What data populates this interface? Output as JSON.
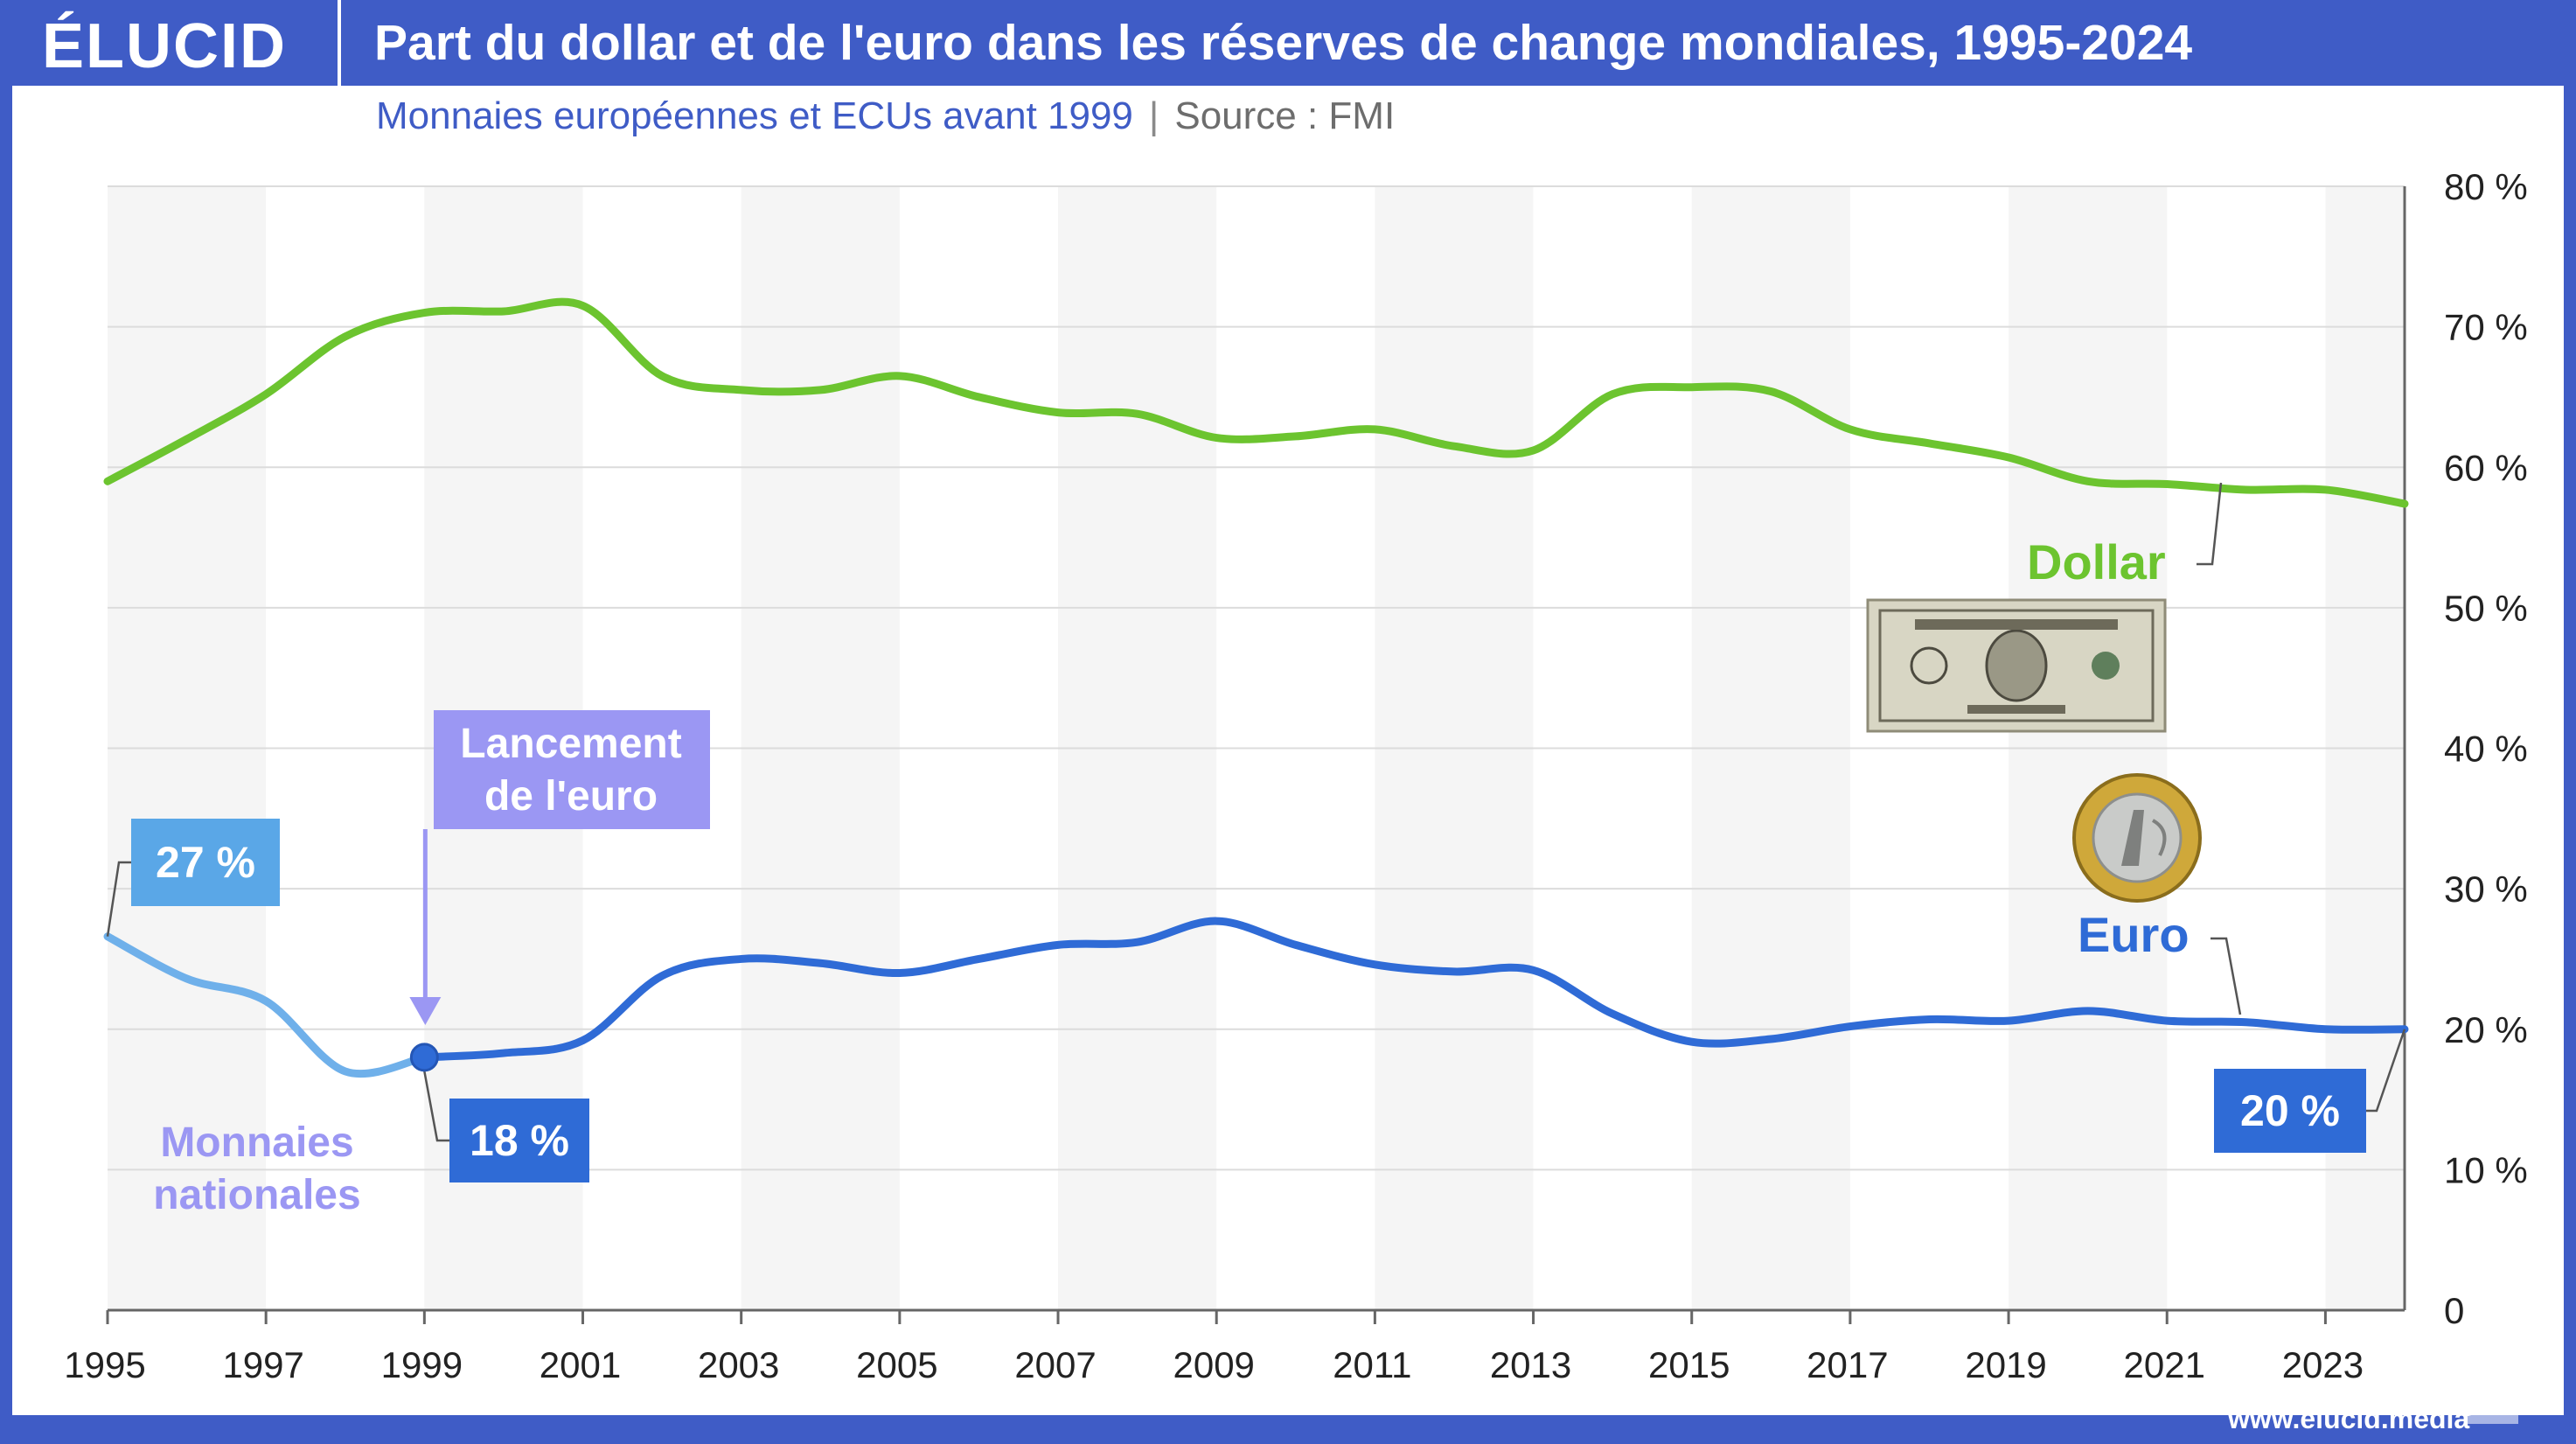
{
  "header": {
    "logo": "ÉLUCID",
    "title": "Part du dollar et de l'euro dans les réserves de change mondiales, 1995-2024",
    "subtitle": "Monnaies européennes et ECUs avant 1999",
    "separator": "|",
    "source": "Source : FMI"
  },
  "footer": {
    "url": "www.elucid.media"
  },
  "colors": {
    "brand": "#3f5cc6",
    "dollar": "#6cc42f",
    "euro": "#2f6bd6",
    "national": "#6fb0ea",
    "launch": "#9b97f3",
    "label_27": "#5aa7e7",
    "label_18": "#2f6bd6",
    "label_20": "#2f6bd6"
  },
  "chart_data": {
    "type": "line",
    "title": "Part du dollar et de l'euro dans les réserves de change mondiales, 1995-2024",
    "xlabel": "",
    "ylabel": "",
    "xlim": [
      1995,
      2024
    ],
    "ylim": [
      0,
      80
    ],
    "grid": true,
    "x_ticks": [
      "1995",
      "1997",
      "1999",
      "2001",
      "2003",
      "2005",
      "2007",
      "2009",
      "2011",
      "2013",
      "2015",
      "2017",
      "2019",
      "2021",
      "2023"
    ],
    "y_ticks": [
      "0",
      "10 %",
      "20 %",
      "30 %",
      "40 %",
      "50 %",
      "60 %",
      "70 %",
      "80 %"
    ],
    "series": [
      {
        "name": "Dollar",
        "x": [
          1995,
          1996,
          1997,
          1998,
          1999,
          2000,
          2001,
          2002,
          2003,
          2004,
          2005,
          2006,
          2007,
          2008,
          2009,
          2010,
          2011,
          2012,
          2013,
          2014,
          2015,
          2016,
          2017,
          2018,
          2019,
          2020,
          2021,
          2022,
          2023,
          2024
        ],
        "values": [
          59,
          62,
          65.2,
          69.3,
          71,
          71.1,
          71.5,
          66.5,
          65.5,
          65.5,
          66.5,
          65,
          63.9,
          63.8,
          62.1,
          62.2,
          62.7,
          61.5,
          61.2,
          65.2,
          65.7,
          65.4,
          62.7,
          61.7,
          60.7,
          59,
          58.8,
          58.4,
          58.4,
          57.4
        ]
      },
      {
        "name": "Monnaies nationales",
        "x": [
          1995,
          1996,
          1997,
          1998,
          1999
        ],
        "values": [
          26.6,
          23.6,
          22,
          17,
          18
        ]
      },
      {
        "name": "Euro",
        "x": [
          1999,
          2000,
          2001,
          2002,
          2003,
          2004,
          2005,
          2006,
          2007,
          2008,
          2009,
          2010,
          2011,
          2012,
          2013,
          2014,
          2015,
          2016,
          2017,
          2018,
          2019,
          2020,
          2021,
          2022,
          2023,
          2024
        ],
        "values": [
          18,
          18.3,
          19.2,
          23.8,
          25,
          24.7,
          24,
          25,
          26,
          26.2,
          27.7,
          26,
          24.6,
          24.1,
          24.2,
          21.1,
          19.1,
          19.3,
          20.2,
          20.7,
          20.6,
          21.3,
          20.6,
          20.5,
          20,
          20
        ]
      }
    ],
    "annotations": [
      {
        "text": "Dollar"
      },
      {
        "text": "Euro"
      },
      {
        "text": "Monnaies nationales"
      },
      {
        "text": "Lancement de l'euro",
        "x": 1999
      },
      {
        "text": "27 %",
        "x": 1995,
        "y": 26.6
      },
      {
        "text": "18 %",
        "x": 1999,
        "y": 18
      },
      {
        "text": "20 %",
        "x": 2024,
        "y": 20
      }
    ]
  }
}
